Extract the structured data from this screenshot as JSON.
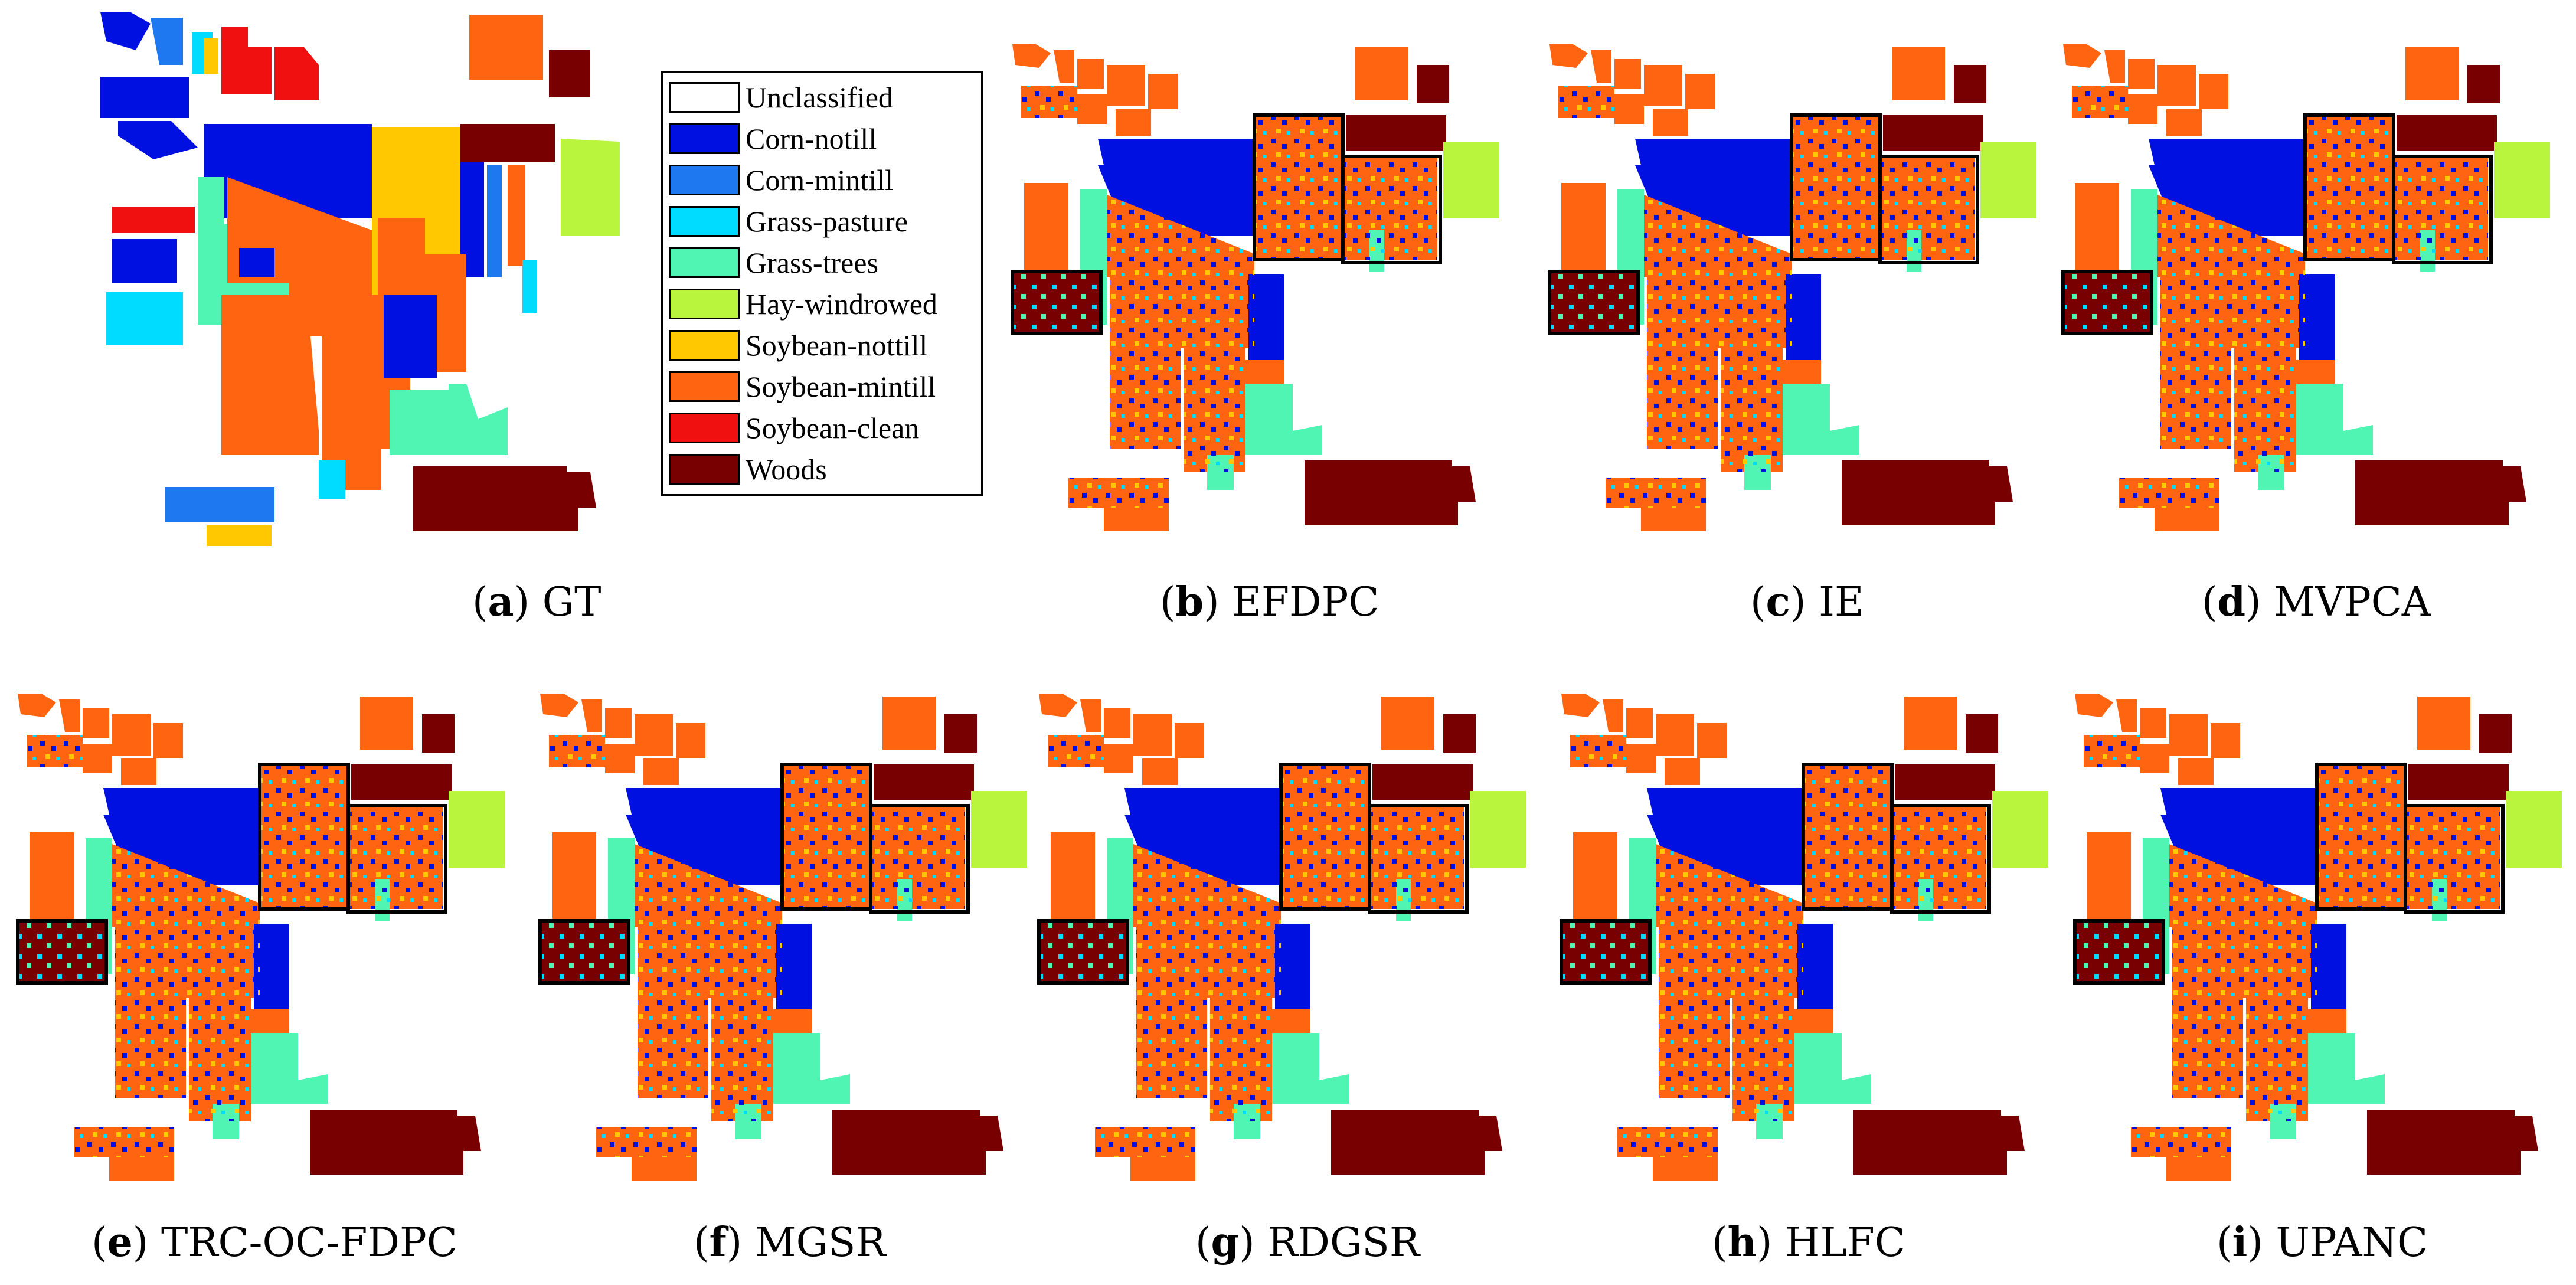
{
  "legend": {
    "items": [
      {
        "label": "Unclassified",
        "color": "#ffffff"
      },
      {
        "label": "Corn-notill",
        "color": "#0010e0"
      },
      {
        "label": "Corn-mintill",
        "color": "#1e78f0"
      },
      {
        "label": "Grass-pasture",
        "color": "#00dcff"
      },
      {
        "label": "Grass-trees",
        "color": "#50f5b4"
      },
      {
        "label": "Hay-windrowed",
        "color": "#b8f53c"
      },
      {
        "label": "Soybean-nottill",
        "color": "#ffc800"
      },
      {
        "label": "Soybean-mintill",
        "color": "#ff6410"
      },
      {
        "label": "Soybean-clean",
        "color": "#f01010"
      },
      {
        "label": "Woods",
        "color": "#780000"
      }
    ]
  },
  "panels": [
    {
      "letter": "a",
      "name": "GT"
    },
    {
      "letter": "b",
      "name": "EFDPC"
    },
    {
      "letter": "c",
      "name": "IE"
    },
    {
      "letter": "d",
      "name": "MVPCA"
    },
    {
      "letter": "e",
      "name": "TRC-OC-FDPC"
    },
    {
      "letter": "f",
      "name": "MGSR"
    },
    {
      "letter": "g",
      "name": "RDGSR"
    },
    {
      "letter": "h",
      "name": "HLFC"
    },
    {
      "letter": "i",
      "name": "UPANC"
    }
  ]
}
